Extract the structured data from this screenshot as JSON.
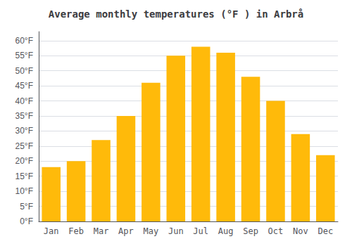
{
  "chart_data": {
    "type": "bar",
    "title": "Average monthly temperatures (°F ) in Arbrå",
    "categories": [
      "Jan",
      "Feb",
      "Mar",
      "Apr",
      "May",
      "Jun",
      "Jul",
      "Aug",
      "Sep",
      "Oct",
      "Nov",
      "Dec"
    ],
    "values": [
      18,
      20,
      27,
      35,
      46,
      55,
      58,
      56,
      48,
      40,
      29,
      22
    ],
    "color": "#FFBA0A",
    "ylim": [
      0,
      63
    ],
    "yticks": [
      {
        "value": 0,
        "label": "0°F"
      },
      {
        "value": 5,
        "label": "5°F"
      },
      {
        "value": 10,
        "label": "10°F"
      },
      {
        "value": 15,
        "label": "15°F"
      },
      {
        "value": 20,
        "label": "20°F"
      },
      {
        "value": 25,
        "label": "25°F"
      },
      {
        "value": 30,
        "label": "30°F"
      },
      {
        "value": 35,
        "label": "35°F"
      },
      {
        "value": 40,
        "label": "40°F"
      },
      {
        "value": 45,
        "label": "45°F"
      },
      {
        "value": 50,
        "label": "50°F"
      },
      {
        "value": 55,
        "label": "55°F"
      },
      {
        "value": 60,
        "label": "60°F"
      }
    ],
    "grid": true
  }
}
